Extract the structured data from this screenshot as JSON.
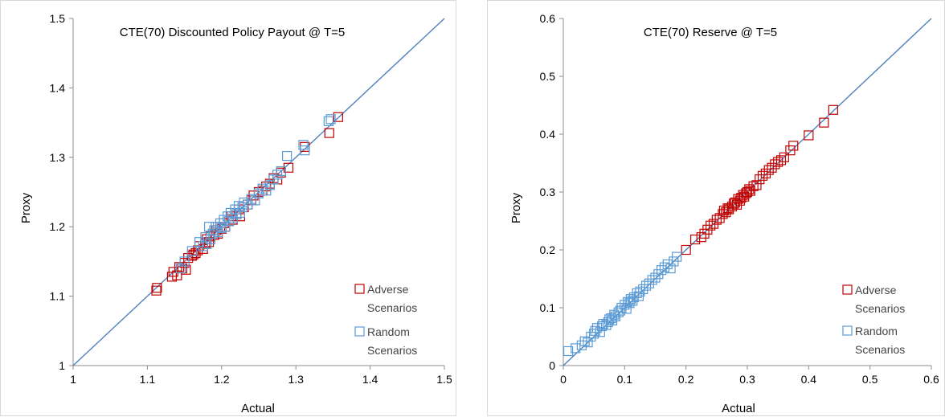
{
  "colors": {
    "adverse": "#c00000",
    "random": "#5b9bd5",
    "diagonal": "#4f81bd",
    "grid": "#c8c8c8"
  },
  "chart_data": [
    {
      "type": "scatter",
      "title": "CTE(70) Discounted Policy Payout @ T=5",
      "xlabel": "Actual",
      "ylabel": "Proxy",
      "xlim": [
        1,
        1.5
      ],
      "ylim": [
        1,
        1.5
      ],
      "xticks": [
        "1",
        "1.1",
        "1.2",
        "1.3",
        "1.4",
        "1.5"
      ],
      "yticks": [
        "1",
        "1.1",
        "1.2",
        "1.3",
        "1.4",
        "1.5"
      ],
      "reference_line": "y = x",
      "grid": false,
      "legend_position": "bottom-right",
      "legend": [
        {
          "key": "adverse",
          "line1": "Adverse",
          "line2": "Scenarios"
        },
        {
          "key": "random",
          "line1": "Random",
          "line2": "Scenarios"
        }
      ],
      "series": [
        {
          "key": "adverse",
          "x": [
            1.112,
            1.113,
            1.133,
            1.135,
            1.14,
            1.143,
            1.147,
            1.15,
            1.152,
            1.155,
            1.16,
            1.162,
            1.165,
            1.168,
            1.17,
            1.175,
            1.178,
            1.18,
            1.183,
            1.185,
            1.19,
            1.193,
            1.195,
            1.198,
            1.2,
            1.203,
            1.205,
            1.21,
            1.213,
            1.215,
            1.22,
            1.223,
            1.225,
            1.23,
            1.235,
            1.24,
            1.243,
            1.25,
            1.255,
            1.26,
            1.265,
            1.27,
            1.275,
            1.28,
            1.29,
            1.312,
            1.345,
            1.357
          ],
          "y": [
            1.108,
            1.112,
            1.128,
            1.135,
            1.13,
            1.142,
            1.14,
            1.148,
            1.138,
            1.155,
            1.158,
            1.16,
            1.162,
            1.166,
            1.172,
            1.168,
            1.176,
            1.182,
            1.178,
            1.186,
            1.188,
            1.195,
            1.19,
            1.2,
            1.197,
            1.205,
            1.2,
            1.208,
            1.215,
            1.21,
            1.218,
            1.225,
            1.215,
            1.228,
            1.232,
            1.238,
            1.245,
            1.25,
            1.252,
            1.258,
            1.262,
            1.27,
            1.268,
            1.278,
            1.285,
            1.315,
            1.335,
            1.358
          ]
        },
        {
          "key": "random",
          "x": [
            1.145,
            1.15,
            1.16,
            1.17,
            1.175,
            1.178,
            1.18,
            1.183,
            1.185,
            1.188,
            1.19,
            1.192,
            1.195,
            1.198,
            1.2,
            1.203,
            1.205,
            1.208,
            1.21,
            1.212,
            1.215,
            1.218,
            1.22,
            1.223,
            1.225,
            1.228,
            1.23,
            1.235,
            1.24,
            1.245,
            1.25,
            1.255,
            1.26,
            1.265,
            1.27,
            1.275,
            1.28,
            1.288,
            1.31,
            1.312,
            1.344,
            1.347
          ],
          "y": [
            1.14,
            1.15,
            1.165,
            1.178,
            1.172,
            1.185,
            1.175,
            1.2,
            1.182,
            1.19,
            1.195,
            1.2,
            1.192,
            1.205,
            1.198,
            1.21,
            1.2,
            1.215,
            1.208,
            1.22,
            1.212,
            1.225,
            1.218,
            1.23,
            1.22,
            1.228,
            1.235,
            1.232,
            1.24,
            1.238,
            1.248,
            1.255,
            1.252,
            1.26,
            1.268,
            1.275,
            1.28,
            1.302,
            1.318,
            1.31,
            1.352,
            1.355
          ]
        }
      ]
    },
    {
      "type": "scatter",
      "title": "CTE(70) Reserve @ T=5",
      "xlabel": "Actual",
      "ylabel": "Proxy",
      "xlim": [
        0,
        0.6
      ],
      "ylim": [
        0,
        0.6
      ],
      "xticks": [
        "0",
        "0.1",
        "0.2",
        "0.3",
        "0.4",
        "0.5",
        "0.6"
      ],
      "yticks": [
        "0",
        "0.1",
        "0.2",
        "0.3",
        "0.4",
        "0.5",
        "0.6"
      ],
      "reference_line": "y = x",
      "grid": false,
      "legend_position": "bottom-right",
      "legend": [
        {
          "key": "adverse",
          "line1": "Adverse",
          "line2": "Scenarios"
        },
        {
          "key": "random",
          "line1": "Random",
          "line2": "Scenarios"
        }
      ],
      "series": [
        {
          "key": "adverse",
          "x": [
            0.2,
            0.215,
            0.225,
            0.23,
            0.235,
            0.24,
            0.245,
            0.25,
            0.255,
            0.26,
            0.262,
            0.265,
            0.268,
            0.27,
            0.275,
            0.278,
            0.28,
            0.283,
            0.285,
            0.288,
            0.29,
            0.293,
            0.295,
            0.298,
            0.3,
            0.303,
            0.305,
            0.31,
            0.315,
            0.32,
            0.325,
            0.33,
            0.335,
            0.34,
            0.345,
            0.35,
            0.355,
            0.36,
            0.37,
            0.375,
            0.4,
            0.425,
            0.44
          ],
          "y": [
            0.2,
            0.218,
            0.222,
            0.228,
            0.235,
            0.242,
            0.245,
            0.252,
            0.255,
            0.262,
            0.268,
            0.265,
            0.272,
            0.27,
            0.275,
            0.28,
            0.282,
            0.278,
            0.288,
            0.285,
            0.29,
            0.295,
            0.292,
            0.298,
            0.3,
            0.305,
            0.302,
            0.31,
            0.312,
            0.322,
            0.328,
            0.332,
            0.338,
            0.342,
            0.348,
            0.352,
            0.355,
            0.36,
            0.372,
            0.38,
            0.398,
            0.42,
            0.442
          ]
        },
        {
          "key": "random",
          "x": [
            0.008,
            0.02,
            0.03,
            0.035,
            0.04,
            0.045,
            0.05,
            0.052,
            0.055,
            0.06,
            0.063,
            0.065,
            0.07,
            0.073,
            0.075,
            0.078,
            0.08,
            0.083,
            0.085,
            0.09,
            0.093,
            0.095,
            0.1,
            0.103,
            0.105,
            0.108,
            0.11,
            0.113,
            0.115,
            0.12,
            0.123,
            0.125,
            0.13,
            0.135,
            0.14,
            0.145,
            0.15,
            0.155,
            0.16,
            0.165,
            0.17,
            0.175,
            0.18,
            0.185
          ],
          "y": [
            0.025,
            0.03,
            0.035,
            0.042,
            0.04,
            0.05,
            0.055,
            0.06,
            0.065,
            0.058,
            0.068,
            0.072,
            0.07,
            0.075,
            0.08,
            0.082,
            0.078,
            0.088,
            0.085,
            0.092,
            0.095,
            0.1,
            0.105,
            0.098,
            0.11,
            0.108,
            0.115,
            0.112,
            0.118,
            0.125,
            0.12,
            0.128,
            0.132,
            0.138,
            0.142,
            0.148,
            0.152,
            0.158,
            0.165,
            0.17,
            0.175,
            0.168,
            0.18,
            0.188
          ]
        }
      ]
    }
  ]
}
